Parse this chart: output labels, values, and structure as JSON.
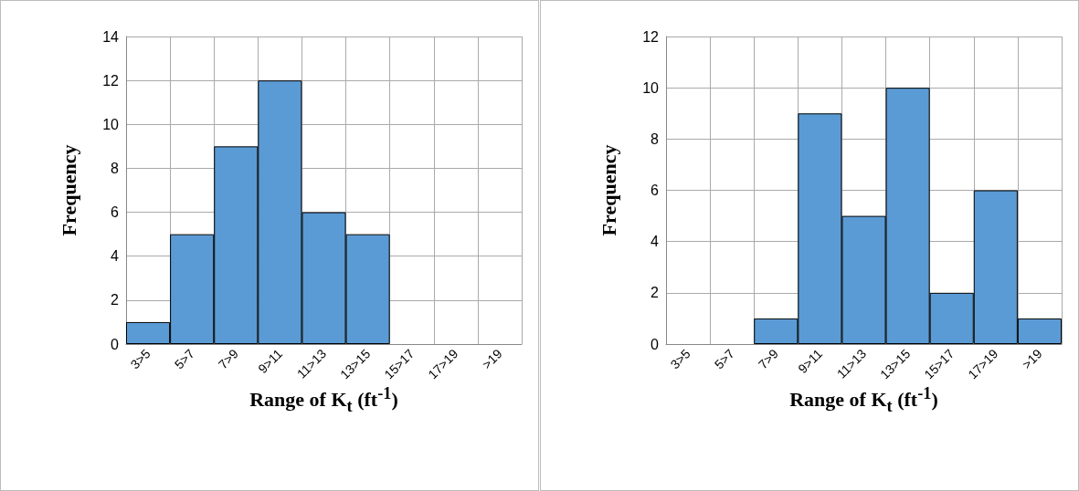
{
  "chart_data": [
    {
      "type": "bar",
      "categories": [
        "3>5",
        "5>7",
        "7>9",
        "9>11",
        "11>13",
        "13>15",
        "15>17",
        "17>19",
        ">19"
      ],
      "values": [
        1,
        5,
        9,
        12,
        6,
        5,
        0,
        0,
        0
      ],
      "color": "#5b9bd5",
      "ylim": [
        0,
        14
      ],
      "yticks": [
        0,
        2,
        4,
        6,
        8,
        10,
        12,
        14
      ],
      "grid": true,
      "xlabel": "Range of K$_{t}$ (ft$^{-1}$)",
      "ylabel": "Frequency"
    },
    {
      "type": "bar",
      "categories": [
        "3>5",
        "5>7",
        "7>9",
        "9>11",
        "11>13",
        "13>15",
        "15>17",
        "17>19",
        ">19"
      ],
      "values": [
        0,
        0,
        1,
        9,
        5,
        10,
        2,
        6,
        1
      ],
      "color": "#5b9bd5",
      "ylim": [
        0,
        12
      ],
      "yticks": [
        0,
        2,
        4,
        6,
        8,
        10,
        12
      ],
      "grid": true,
      "xlabel": "Range of K$_{t}$ (ft$^{-1}$)",
      "ylabel": "Frequency"
    }
  ]
}
